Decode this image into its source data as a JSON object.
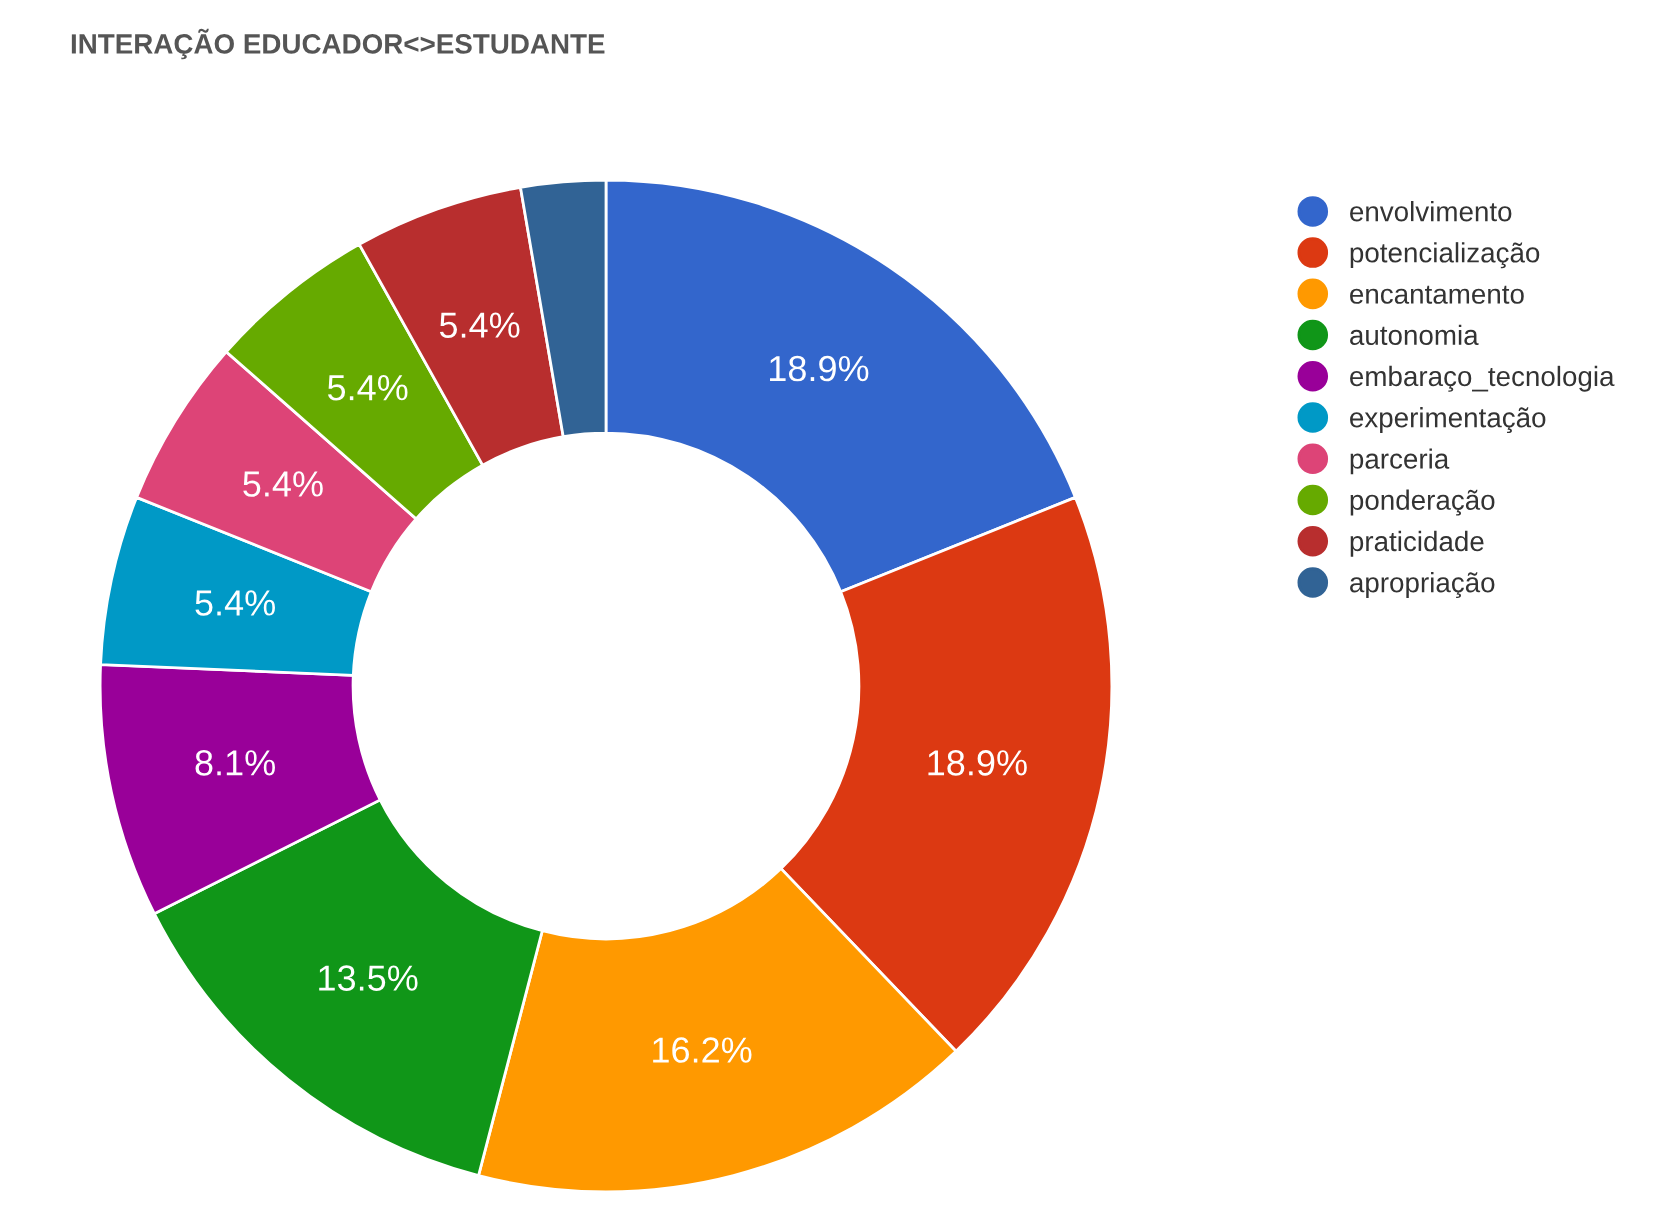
{
  "chart_data": {
    "type": "donut",
    "title": "INTERAÇÃO EDUCADOR<>ESTUDANTE",
    "categories": [
      "envolvimento",
      "potencialização",
      "encantamento",
      "autonomia",
      "embaraço_tecnologia",
      "experimentação",
      "parceria",
      "ponderação",
      "praticidade",
      "apropriação"
    ],
    "values": [
      18.9,
      18.9,
      16.2,
      13.5,
      8.1,
      5.4,
      5.4,
      5.4,
      5.4,
      2.7
    ],
    "value_labels": [
      "18.9%",
      "18.9%",
      "16.2%",
      "13.5%",
      "8.1%",
      "5.4%",
      "5.4%",
      "5.4%",
      "5.4%",
      null
    ],
    "colors": [
      "#3366cc",
      "#dc3912",
      "#ff9900",
      "#109618",
      "#990099",
      "#0099c6",
      "#dd4477",
      "#66aa00",
      "#b82e2e",
      "#316395"
    ],
    "legend": "right"
  }
}
